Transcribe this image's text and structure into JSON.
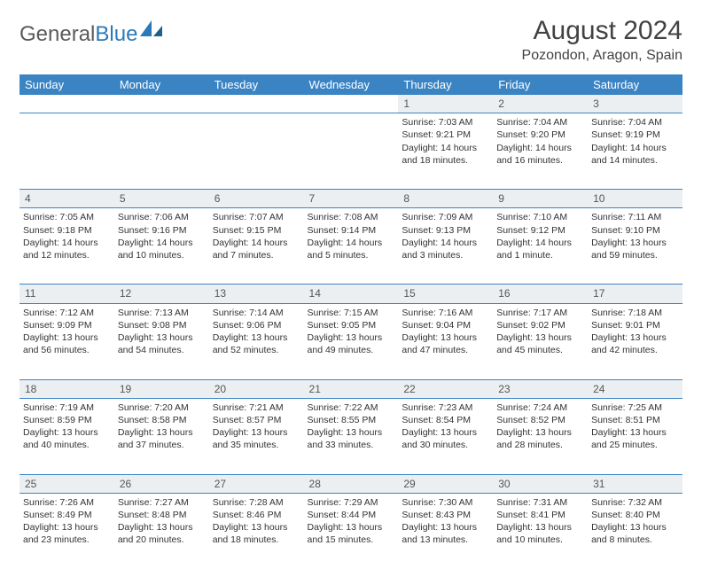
{
  "logo": {
    "text_gray": "General",
    "text_blue": "Blue"
  },
  "title": "August 2024",
  "location": "Pozondon, Aragon, Spain",
  "colors": {
    "header_bg": "#3b84c4",
    "header_text": "#ffffff",
    "daynum_bg": "#eceff1",
    "border": "#3b84c4",
    "text": "#333333",
    "logo_gray": "#5a5a5a",
    "logo_blue": "#2a7ab9"
  },
  "day_headers": [
    "Sunday",
    "Monday",
    "Tuesday",
    "Wednesday",
    "Thursday",
    "Friday",
    "Saturday"
  ],
  "weeks": [
    [
      null,
      null,
      null,
      null,
      {
        "n": "1",
        "sr": "7:03 AM",
        "ss": "9:21 PM",
        "dl": "14 hours and 18 minutes."
      },
      {
        "n": "2",
        "sr": "7:04 AM",
        "ss": "9:20 PM",
        "dl": "14 hours and 16 minutes."
      },
      {
        "n": "3",
        "sr": "7:04 AM",
        "ss": "9:19 PM",
        "dl": "14 hours and 14 minutes."
      }
    ],
    [
      {
        "n": "4",
        "sr": "7:05 AM",
        "ss": "9:18 PM",
        "dl": "14 hours and 12 minutes."
      },
      {
        "n": "5",
        "sr": "7:06 AM",
        "ss": "9:16 PM",
        "dl": "14 hours and 10 minutes."
      },
      {
        "n": "6",
        "sr": "7:07 AM",
        "ss": "9:15 PM",
        "dl": "14 hours and 7 minutes."
      },
      {
        "n": "7",
        "sr": "7:08 AM",
        "ss": "9:14 PM",
        "dl": "14 hours and 5 minutes."
      },
      {
        "n": "8",
        "sr": "7:09 AM",
        "ss": "9:13 PM",
        "dl": "14 hours and 3 minutes."
      },
      {
        "n": "9",
        "sr": "7:10 AM",
        "ss": "9:12 PM",
        "dl": "14 hours and 1 minute."
      },
      {
        "n": "10",
        "sr": "7:11 AM",
        "ss": "9:10 PM",
        "dl": "13 hours and 59 minutes."
      }
    ],
    [
      {
        "n": "11",
        "sr": "7:12 AM",
        "ss": "9:09 PM",
        "dl": "13 hours and 56 minutes."
      },
      {
        "n": "12",
        "sr": "7:13 AM",
        "ss": "9:08 PM",
        "dl": "13 hours and 54 minutes."
      },
      {
        "n": "13",
        "sr": "7:14 AM",
        "ss": "9:06 PM",
        "dl": "13 hours and 52 minutes."
      },
      {
        "n": "14",
        "sr": "7:15 AM",
        "ss": "9:05 PM",
        "dl": "13 hours and 49 minutes."
      },
      {
        "n": "15",
        "sr": "7:16 AM",
        "ss": "9:04 PM",
        "dl": "13 hours and 47 minutes."
      },
      {
        "n": "16",
        "sr": "7:17 AM",
        "ss": "9:02 PM",
        "dl": "13 hours and 45 minutes."
      },
      {
        "n": "17",
        "sr": "7:18 AM",
        "ss": "9:01 PM",
        "dl": "13 hours and 42 minutes."
      }
    ],
    [
      {
        "n": "18",
        "sr": "7:19 AM",
        "ss": "8:59 PM",
        "dl": "13 hours and 40 minutes."
      },
      {
        "n": "19",
        "sr": "7:20 AM",
        "ss": "8:58 PM",
        "dl": "13 hours and 37 minutes."
      },
      {
        "n": "20",
        "sr": "7:21 AM",
        "ss": "8:57 PM",
        "dl": "13 hours and 35 minutes."
      },
      {
        "n": "21",
        "sr": "7:22 AM",
        "ss": "8:55 PM",
        "dl": "13 hours and 33 minutes."
      },
      {
        "n": "22",
        "sr": "7:23 AM",
        "ss": "8:54 PM",
        "dl": "13 hours and 30 minutes."
      },
      {
        "n": "23",
        "sr": "7:24 AM",
        "ss": "8:52 PM",
        "dl": "13 hours and 28 minutes."
      },
      {
        "n": "24",
        "sr": "7:25 AM",
        "ss": "8:51 PM",
        "dl": "13 hours and 25 minutes."
      }
    ],
    [
      {
        "n": "25",
        "sr": "7:26 AM",
        "ss": "8:49 PM",
        "dl": "13 hours and 23 minutes."
      },
      {
        "n": "26",
        "sr": "7:27 AM",
        "ss": "8:48 PM",
        "dl": "13 hours and 20 minutes."
      },
      {
        "n": "27",
        "sr": "7:28 AM",
        "ss": "8:46 PM",
        "dl": "13 hours and 18 minutes."
      },
      {
        "n": "28",
        "sr": "7:29 AM",
        "ss": "8:44 PM",
        "dl": "13 hours and 15 minutes."
      },
      {
        "n": "29",
        "sr": "7:30 AM",
        "ss": "8:43 PM",
        "dl": "13 hours and 13 minutes."
      },
      {
        "n": "30",
        "sr": "7:31 AM",
        "ss": "8:41 PM",
        "dl": "13 hours and 10 minutes."
      },
      {
        "n": "31",
        "sr": "7:32 AM",
        "ss": "8:40 PM",
        "dl": "13 hours and 8 minutes."
      }
    ]
  ],
  "labels": {
    "sunrise": "Sunrise: ",
    "sunset": "Sunset: ",
    "daylight": "Daylight: "
  }
}
